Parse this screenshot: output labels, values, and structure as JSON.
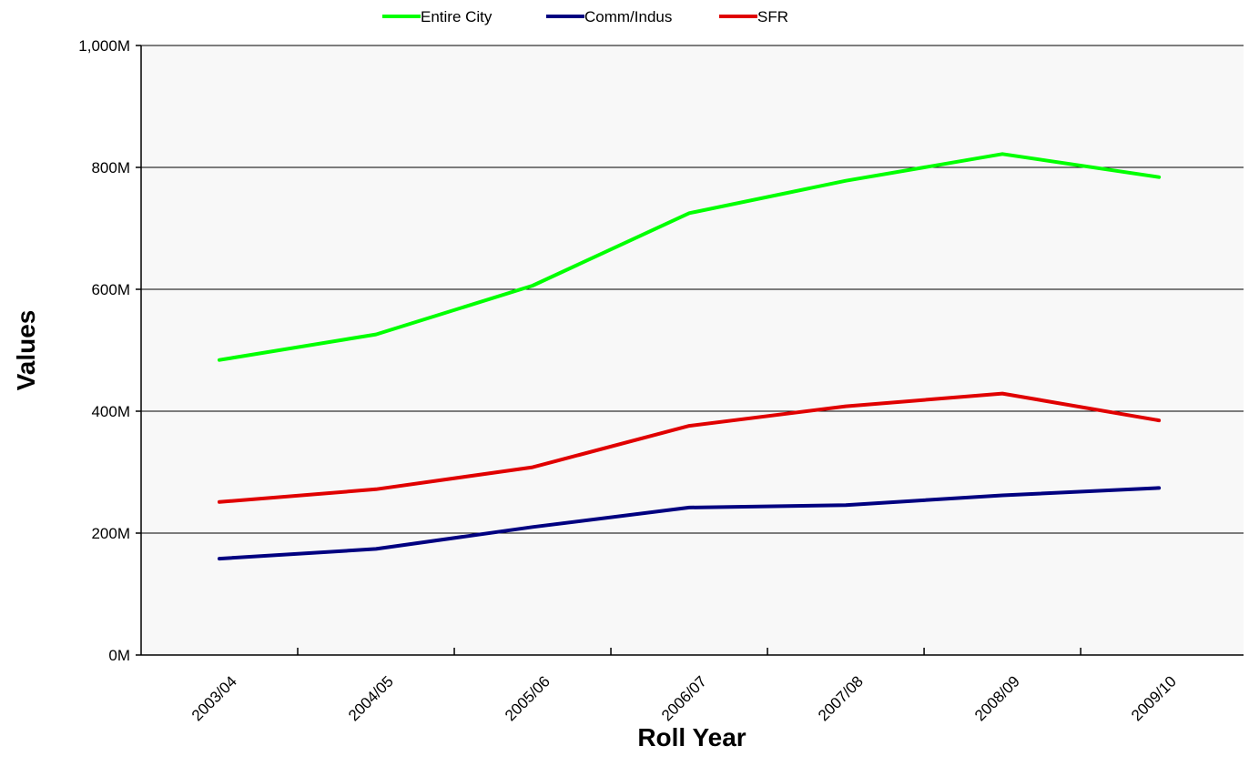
{
  "chart_data": {
    "type": "line",
    "title": "",
    "xlabel": "Roll Year",
    "ylabel": "Values",
    "categories": [
      "2003/04",
      "2004/05",
      "2005/06",
      "2006/07",
      "2007/08",
      "2008/09",
      "2009/10"
    ],
    "y_ticks": [
      0,
      200,
      400,
      600,
      800,
      1000
    ],
    "y_tick_labels": [
      "0M",
      "200M",
      "400M",
      "600M",
      "800M",
      "1,000M"
    ],
    "ylim": [
      0,
      1000
    ],
    "y_unit": "M",
    "grid": true,
    "legend_position": "top",
    "series": [
      {
        "name": "Entire City",
        "color": "#00ff00",
        "values": [
          484,
          526,
          606,
          725,
          778,
          822,
          784
        ]
      },
      {
        "name": "Comm/Indus",
        "color": "#000080",
        "values": [
          158,
          174,
          210,
          242,
          246,
          262,
          274
        ]
      },
      {
        "name": "SFR",
        "color": "#e00000",
        "values": [
          251,
          272,
          308,
          376,
          408,
          429,
          385
        ]
      }
    ]
  }
}
